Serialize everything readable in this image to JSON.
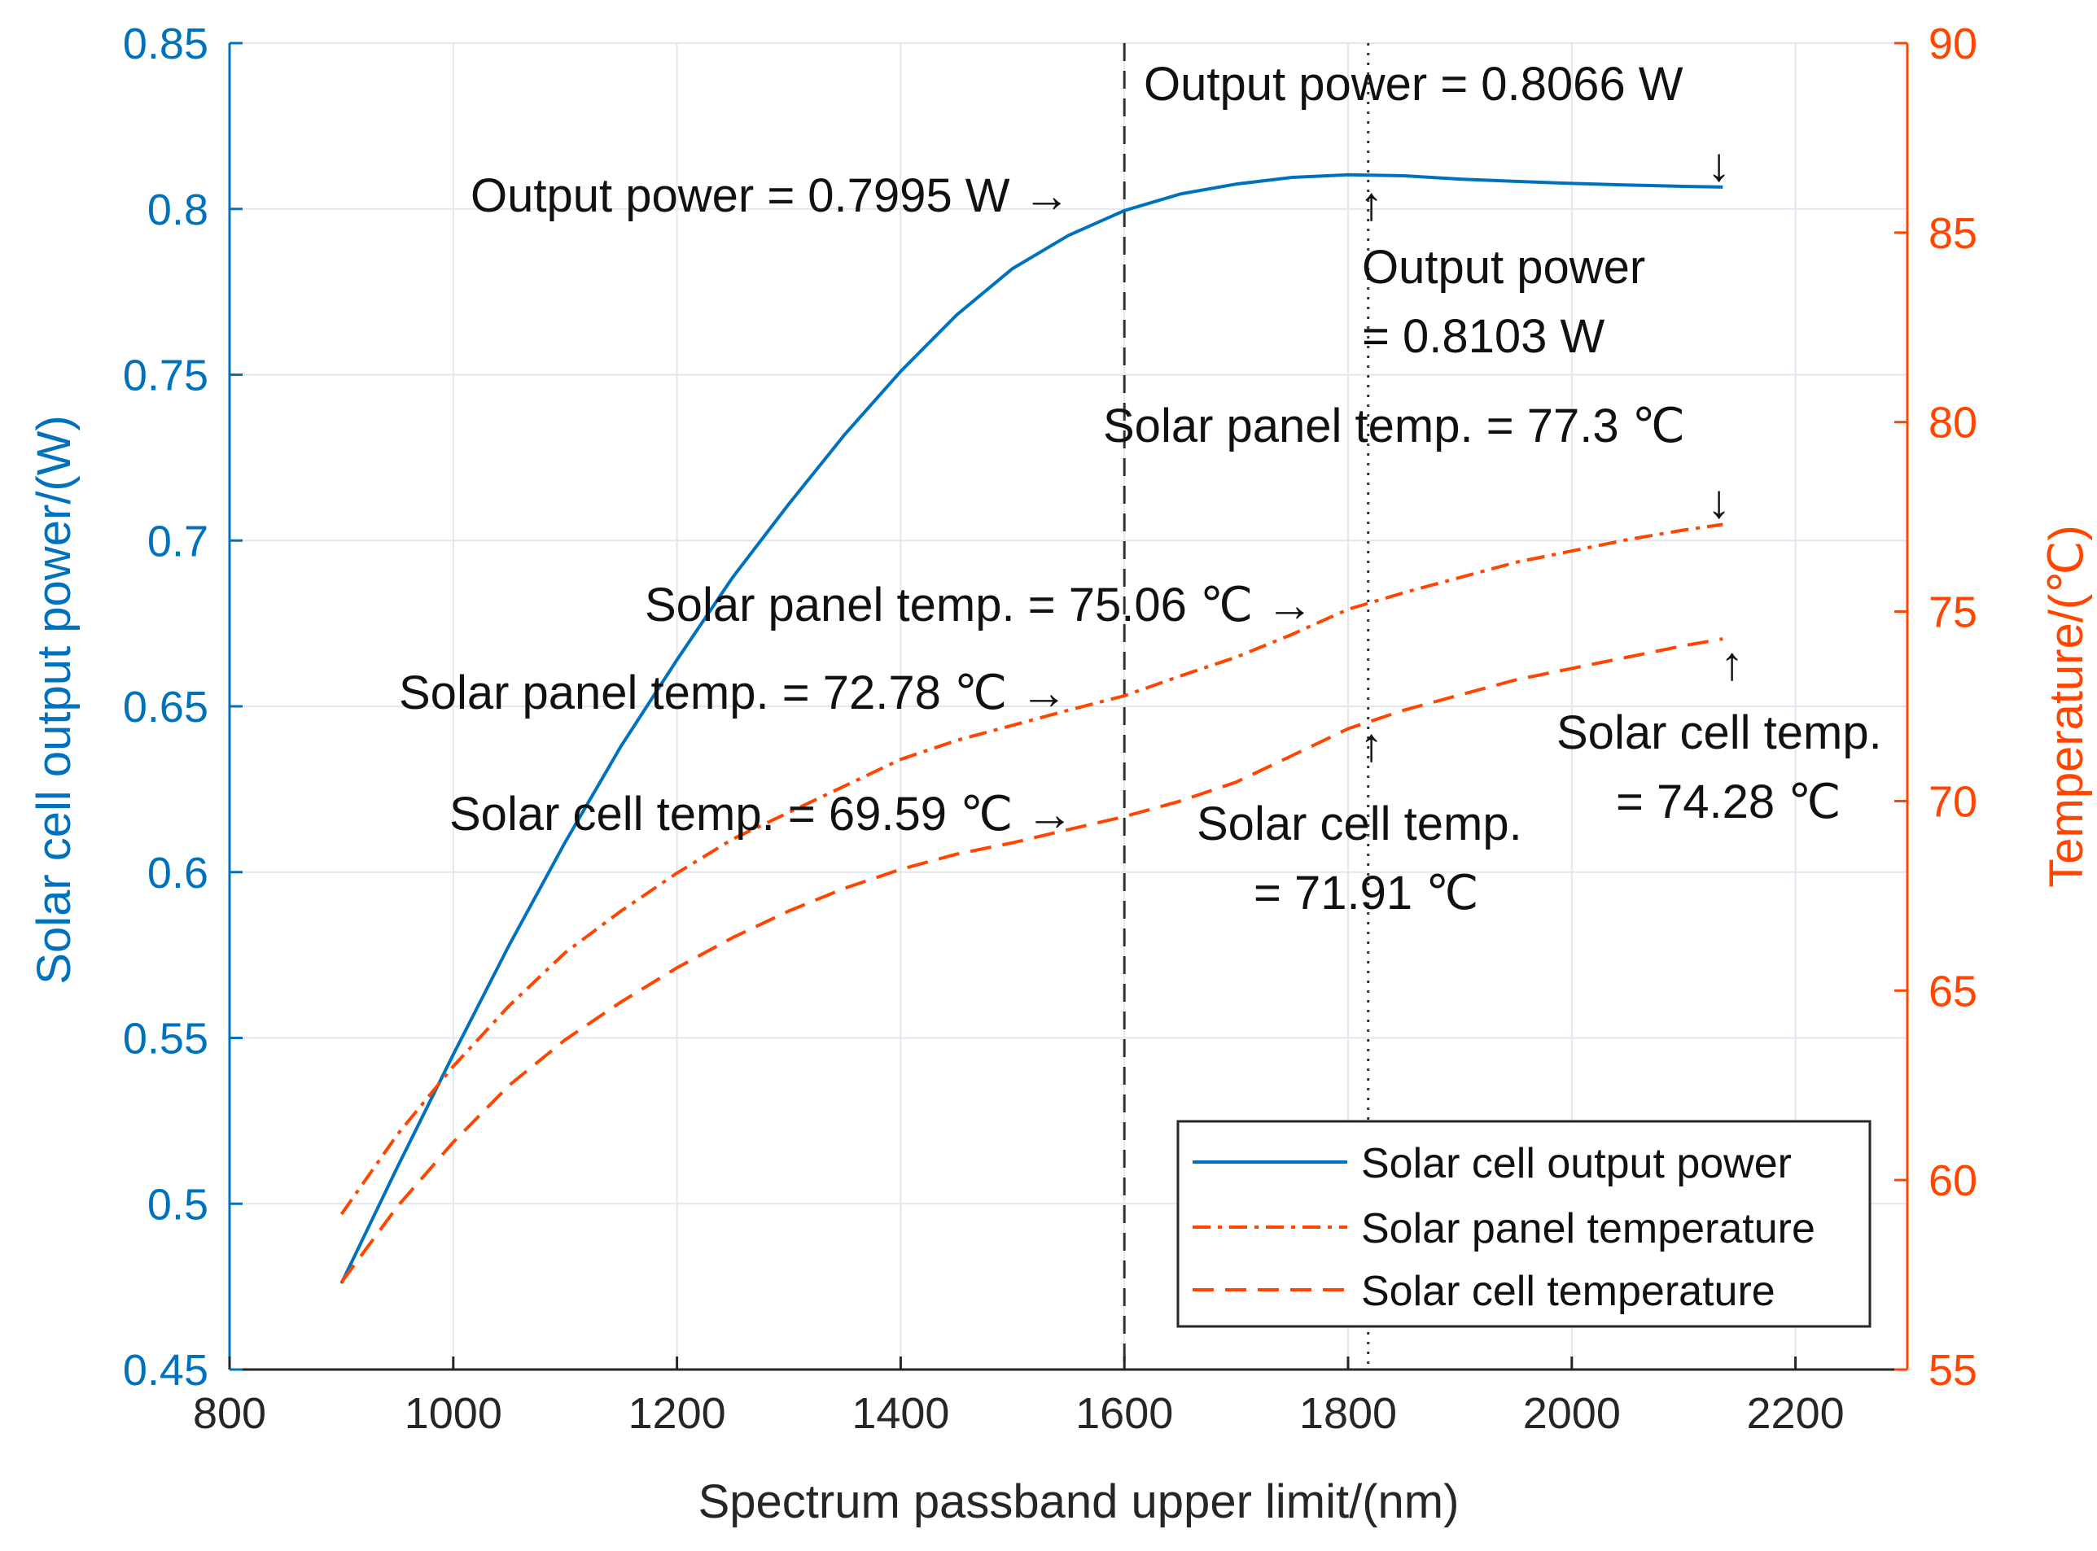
{
  "chart_data": {
    "type": "line",
    "x_axis": {
      "label": "Spectrum passband upper limit/(nm)",
      "range": [
        800,
        2300
      ],
      "ticks": [
        800,
        1000,
        1200,
        1400,
        1600,
        1800,
        2000,
        2200
      ],
      "tick_labels": [
        "800",
        "1000",
        "1200",
        "1400",
        "1600",
        "1800",
        "2000",
        "2200"
      ]
    },
    "y_left": {
      "label": "Solar cell output power/(W)",
      "range": [
        0.45,
        0.85
      ],
      "ticks": [
        0.45,
        0.5,
        0.55,
        0.6,
        0.65,
        0.7,
        0.75,
        0.8,
        0.85
      ],
      "tick_labels": [
        "0.45",
        "0.5",
        "0.55",
        "0.6",
        "0.65",
        "0.7",
        "0.75",
        "0.8",
        "0.85"
      ],
      "color": "#0072bd"
    },
    "y_right": {
      "label": "Temperature/(℃)",
      "range": [
        55,
        90
      ],
      "ticks": [
        55,
        60,
        65,
        70,
        75,
        80,
        85,
        90
      ],
      "tick_labels": [
        "55",
        "60",
        "65",
        "70",
        "75",
        "80",
        "85",
        "90"
      ],
      "color": "#ff4500"
    },
    "grid": true,
    "series": [
      {
        "name": "Solar cell output power",
        "axis": "left",
        "style": "solid",
        "color": "#0072bd",
        "x": [
          900,
          950,
          1000,
          1050,
          1100,
          1150,
          1200,
          1250,
          1300,
          1350,
          1400,
          1450,
          1500,
          1550,
          1600,
          1650,
          1700,
          1750,
          1800,
          1850,
          1900,
          1950,
          2000,
          2050,
          2100,
          2135
        ],
        "y": [
          0.476,
          0.511,
          0.545,
          0.578,
          0.609,
          0.638,
          0.664,
          0.689,
          0.711,
          0.732,
          0.751,
          0.768,
          0.782,
          0.792,
          0.7995,
          0.8045,
          0.8075,
          0.8095,
          0.8103,
          0.81,
          0.809,
          0.8083,
          0.8077,
          0.8072,
          0.8068,
          0.8066
        ]
      },
      {
        "name": "Solar panel temperature",
        "axis": "right",
        "style": "dashdot",
        "color": "#ff4500",
        "x": [
          900,
          950,
          1000,
          1050,
          1100,
          1150,
          1200,
          1250,
          1300,
          1350,
          1400,
          1450,
          1500,
          1550,
          1600,
          1650,
          1700,
          1750,
          1800,
          1850,
          1900,
          1950,
          2000,
          2050,
          2100,
          2135
        ],
        "y": [
          59.1,
          61.2,
          63.0,
          64.6,
          66.0,
          67.1,
          68.1,
          69.0,
          69.7,
          70.4,
          71.1,
          71.6,
          72.0,
          72.4,
          72.78,
          73.3,
          73.8,
          74.4,
          75.06,
          75.5,
          75.9,
          76.3,
          76.6,
          76.9,
          77.15,
          77.3
        ]
      },
      {
        "name": "Solar cell temperature",
        "axis": "right",
        "style": "dashed",
        "color": "#ff4500",
        "x": [
          900,
          950,
          1000,
          1050,
          1100,
          1150,
          1200,
          1250,
          1300,
          1350,
          1400,
          1450,
          1500,
          1550,
          1600,
          1650,
          1700,
          1750,
          1800,
          1850,
          1900,
          1950,
          2000,
          2050,
          2100,
          2135
        ],
        "y": [
          57.3,
          59.3,
          61.0,
          62.5,
          63.7,
          64.7,
          65.6,
          66.4,
          67.1,
          67.7,
          68.2,
          68.6,
          68.9,
          69.25,
          69.59,
          70.0,
          70.5,
          71.2,
          71.91,
          72.4,
          72.8,
          73.2,
          73.5,
          73.8,
          74.1,
          74.28
        ]
      }
    ],
    "reference_lines": [
      {
        "x": 1600,
        "style": "dashed",
        "color": "#333333"
      },
      {
        "x": 1818,
        "style": "dotted",
        "color": "#333333"
      }
    ],
    "annotations": [
      {
        "lines": [
          "Output power = 0.8066 W"
        ]
      },
      {
        "lines": [
          "Output power = 0.7995 W →"
        ]
      },
      {
        "lines": [
          "Output power",
          "= 0.8103 W"
        ]
      },
      {
        "lines": [
          "Solar panel temp. = 77.3 ℃"
        ]
      },
      {
        "lines": [
          "Solar panel temp. = 75.06 ℃ →"
        ]
      },
      {
        "lines": [
          "Solar panel temp. = 72.78 ℃ →"
        ]
      },
      {
        "lines": [
          "Solar cell temp. = 69.59 ℃ →"
        ]
      },
      {
        "lines": [
          "Solar cell temp.",
          "= 71.91 ℃"
        ]
      },
      {
        "lines": [
          "Solar cell temp.",
          "= 74.28 ℃"
        ]
      },
      {
        "lines": [
          "↓"
        ]
      },
      {
        "lines": [
          "↑"
        ]
      },
      {
        "lines": [
          "↓"
        ]
      },
      {
        "lines": [
          "↑"
        ]
      },
      {
        "lines": [
          "↑"
        ]
      }
    ],
    "legend": {
      "location": "bottom-right",
      "entries": [
        "Solar cell output power",
        "Solar panel temperature",
        "Solar cell temperature"
      ]
    }
  }
}
